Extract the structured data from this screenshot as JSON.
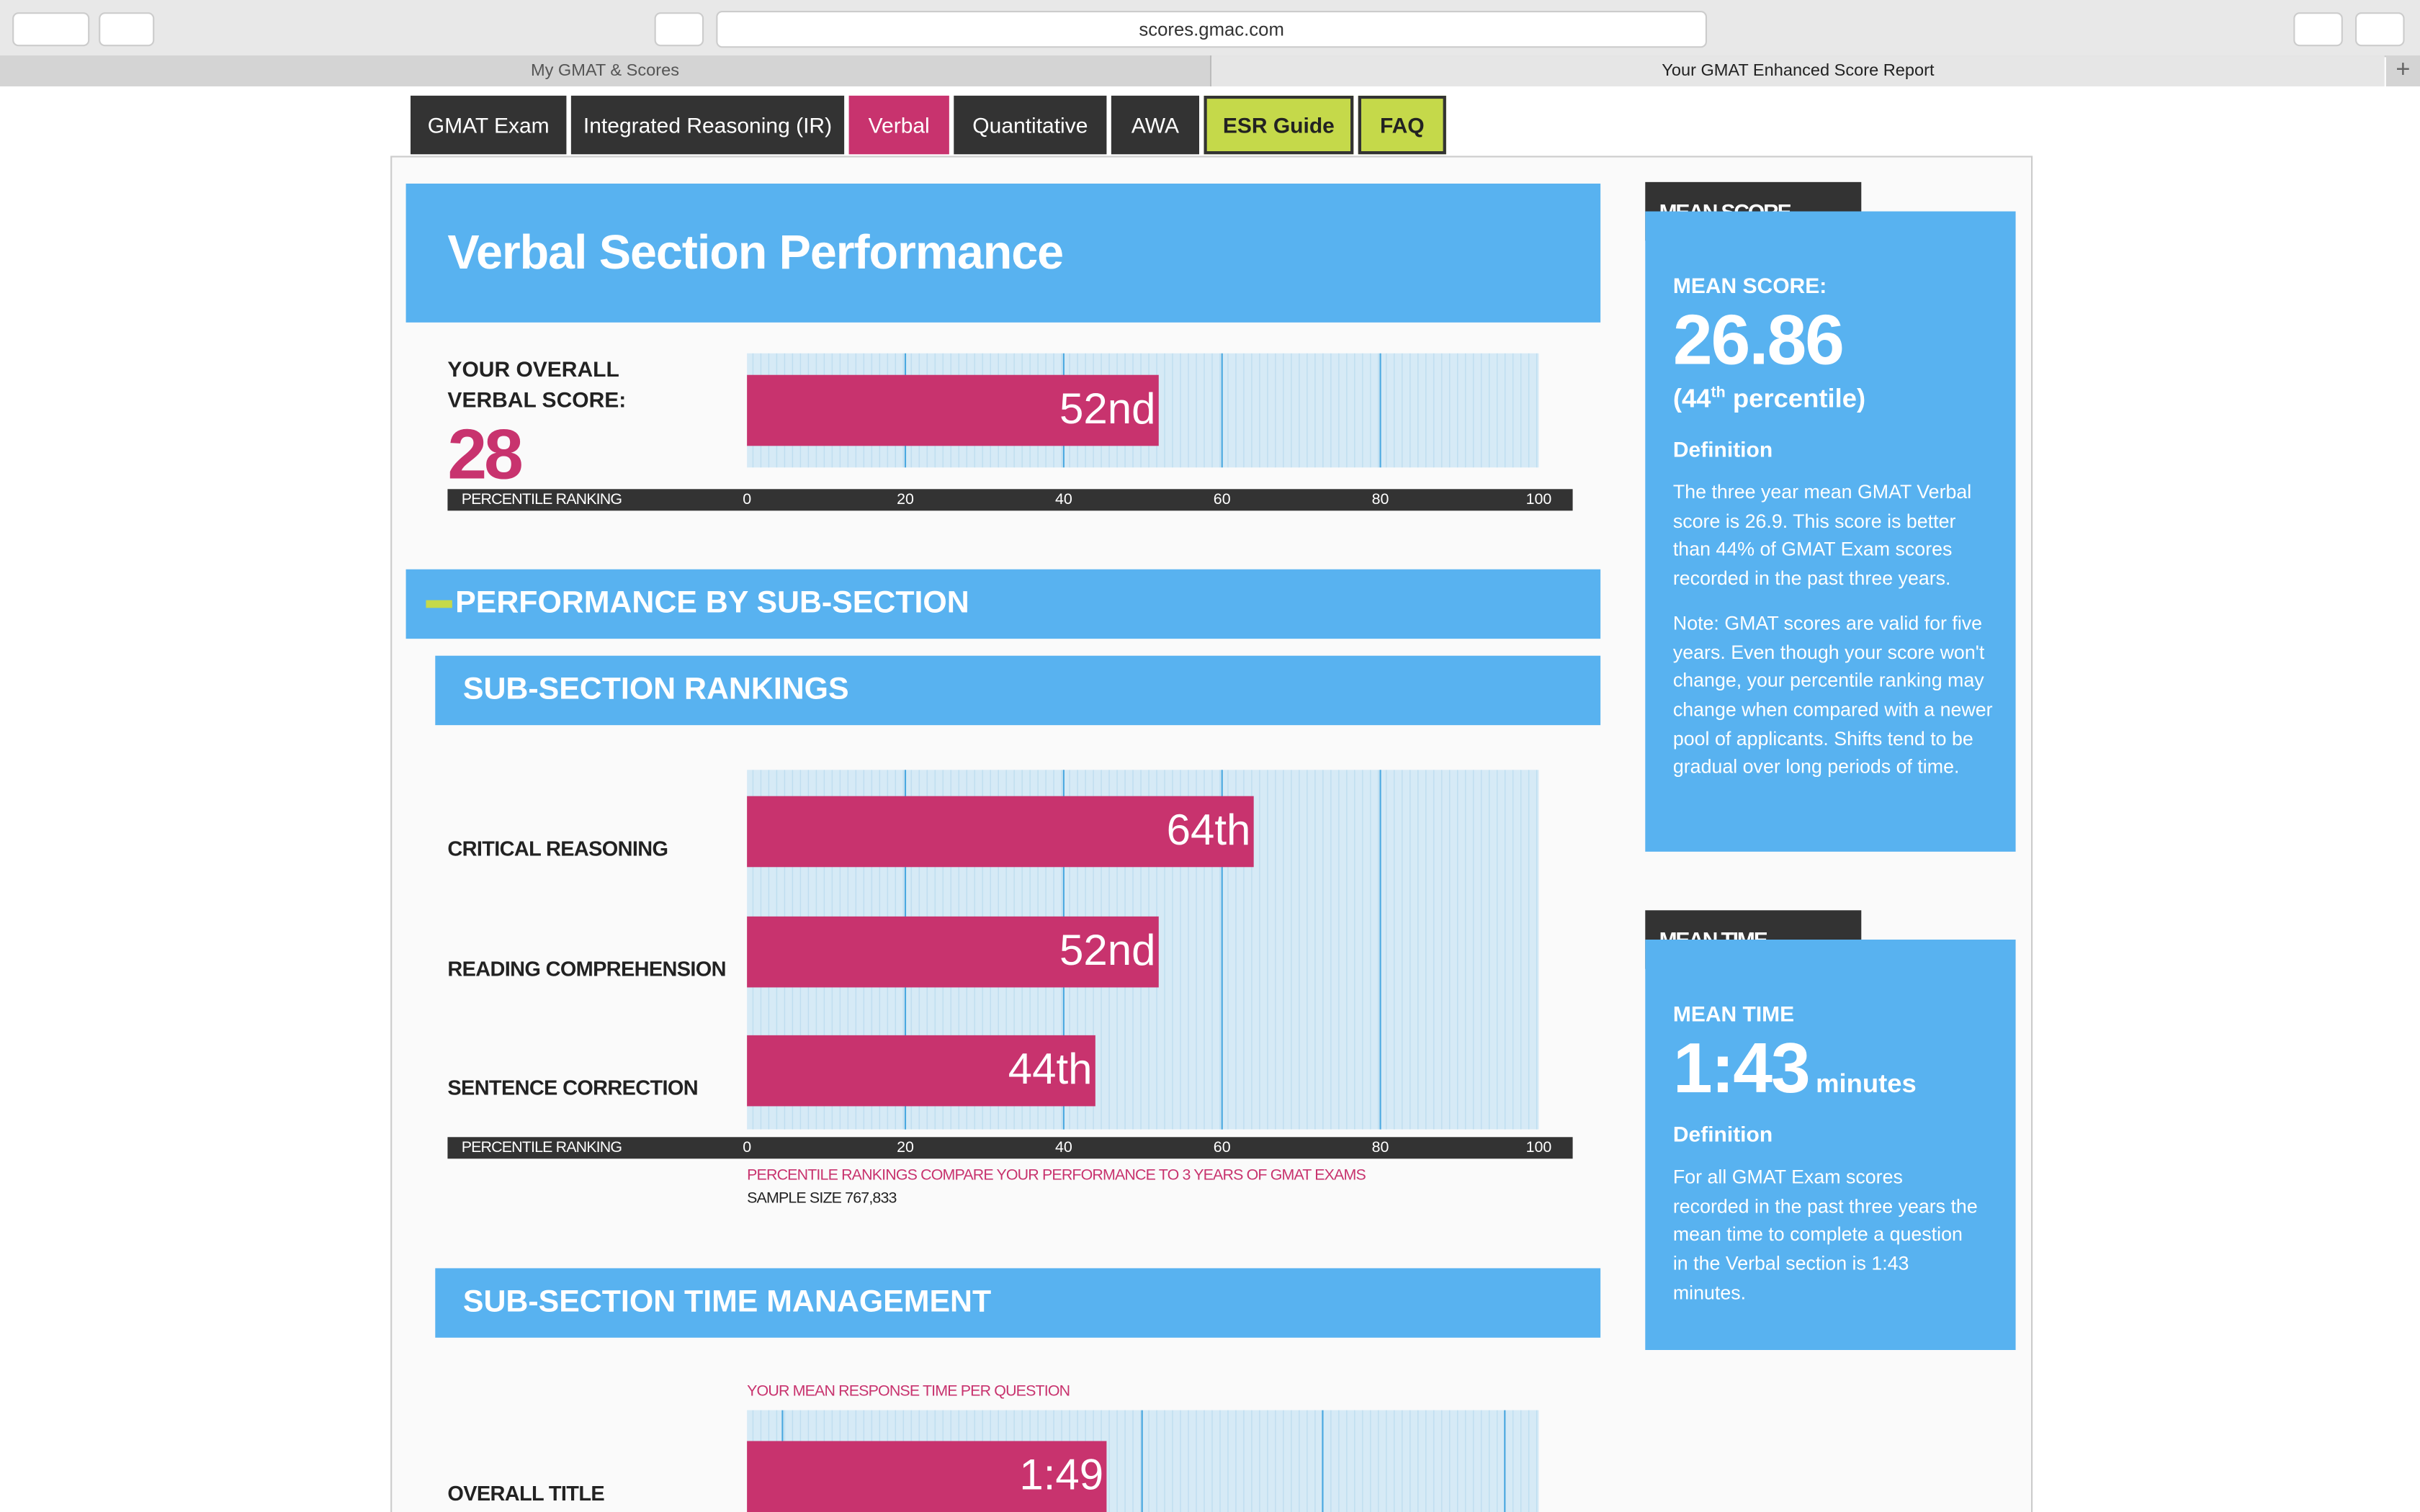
{
  "browser": {
    "url": "scores.gmac.com",
    "tabs": [
      "My GMAT & Scores",
      "Your GMAT Enhanced Score Report"
    ]
  },
  "nav": [
    "GMAT Exam",
    "Integrated Reasoning (IR)",
    "Verbal",
    "Quantitative",
    "AWA",
    "ESR Guide",
    "FAQ"
  ],
  "header": {
    "title": "Verbal Section Performance"
  },
  "overall_score": 28,
  "sections": [
    "PERFORMANCE BY SUB-SECTION",
    "SUB-SECTION RANKINGS",
    "SUB-SECTION TIME MANAGEMENT"
  ],
  "chart_data": [
    {
      "type": "bar",
      "orientation": "horizontal",
      "categories": [
        "YOUR OVERALL VERBAL SCORE:"
      ],
      "values": [
        52
      ],
      "value_labels": [
        "52nd"
      ],
      "color": "#c8336e",
      "axis_label": "PERCENTILE RANKING",
      "xlim": [
        0,
        100
      ],
      "xticks": [
        0,
        20,
        40,
        60,
        80,
        100
      ]
    },
    {
      "type": "bar",
      "orientation": "horizontal",
      "categories": [
        "CRITICAL REASONING",
        "READING COMPREHENSION",
        "SENTENCE CORRECTION"
      ],
      "values": [
        64,
        52,
        44
      ],
      "value_labels": [
        "64th",
        "52nd",
        "44th"
      ],
      "color": "#c8336e",
      "axis_label": "PERCENTILE RANKING",
      "xlim": [
        0,
        100
      ],
      "xticks": [
        0,
        20,
        40,
        60,
        80,
        100
      ],
      "notes": [
        "PERCENTILE RANKINGS COMPARE YOUR PERFORMANCE TO 3 YEARS OF GMAT EXAMS",
        "SAMPLE SIZE 767,833"
      ]
    },
    {
      "type": "bar",
      "orientation": "horizontal",
      "title": "YOUR MEAN RESPONSE TIME PER QUESTION",
      "categories": [
        "OVERALL TITLE"
      ],
      "values": [
        109
      ],
      "value_labels": [
        "1:49"
      ],
      "color": "#c8336e",
      "xlim": [
        0,
        240
      ]
    }
  ],
  "sidebar": [
    {
      "tab": "MEAN SCORE",
      "label": "MEAN SCORE:",
      "value": 26.86,
      "percentile": [
        "(44",
        "th",
        "percentile)"
      ],
      "definition_heading": "Definition",
      "paragraphs": [
        "The three year mean GMAT Verbal score is 26.9. This score is better than 44% of GMAT Exam scores recorded in the past three years.",
        "Note: GMAT scores are valid for five years. Even though your score won't change, your percentile ranking may change when compared with a newer pool of applicants. Shifts tend to be gradual over long periods of time."
      ]
    },
    {
      "tab": "MEAN TIME",
      "label": "MEAN TIME",
      "value": "1:43",
      "unit": "minutes",
      "definition_heading": "Definition",
      "paragraphs": [
        "For all GMAT Exam scores recorded in the past three years the mean time to complete a question in the Verbal section is 1:43 minutes."
      ]
    }
  ]
}
